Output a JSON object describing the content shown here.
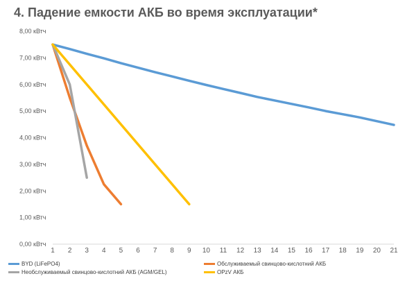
{
  "chart_data": {
    "type": "line",
    "title": "4. Падение емкости АКБ во время эксплуатации*",
    "x": [
      1,
      2,
      3,
      4,
      5,
      6,
      7,
      8,
      9,
      10,
      11,
      12,
      13,
      14,
      15,
      16,
      17,
      18,
      19,
      20,
      21
    ],
    "x_tick_labels": [
      "1",
      "2",
      "3",
      "4",
      "5",
      "6",
      "7",
      "8",
      "9",
      "10",
      "11",
      "12",
      "13",
      "14",
      "15",
      "16",
      "17",
      "18",
      "19",
      "20",
      "21"
    ],
    "y_tick_labels": [
      "0,00 кВтч",
      "1,00 кВтч",
      "2,00 кВтч",
      "3,00 кВтч",
      "4,00 кВтч",
      "5,00 кВтч",
      "6,00 кВтч",
      "7,00 кВтч",
      "8,00 кВтч"
    ],
    "ylim": [
      0,
      8
    ],
    "xlim": [
      1,
      21
    ],
    "grid": false,
    "legend_position": "bottom",
    "series": [
      {
        "name": "BYD (LiFePO4)",
        "color": "#5b9bd5",
        "points": [
          [
            1,
            7.5
          ],
          [
            2,
            7.33
          ],
          [
            3,
            7.15
          ],
          [
            4,
            6.98
          ],
          [
            5,
            6.8
          ],
          [
            6,
            6.63
          ],
          [
            7,
            6.46
          ],
          [
            8,
            6.3
          ],
          [
            9,
            6.14
          ],
          [
            10,
            5.98
          ],
          [
            11,
            5.83
          ],
          [
            12,
            5.68
          ],
          [
            13,
            5.53
          ],
          [
            14,
            5.4
          ],
          [
            15,
            5.27
          ],
          [
            16,
            5.14
          ],
          [
            17,
            5.0
          ],
          [
            18,
            4.88
          ],
          [
            19,
            4.76
          ],
          [
            20,
            4.62
          ],
          [
            21,
            4.48
          ]
        ]
      },
      {
        "name": "Обслуживаемый свинцово-кислотний АКБ",
        "color": "#ed7d31",
        "points": [
          [
            1,
            7.5
          ],
          [
            2,
            5.5
          ],
          [
            3,
            3.7
          ],
          [
            4,
            2.25
          ],
          [
            5,
            1.5
          ]
        ]
      },
      {
        "name": "Необслуживаемый свинцово-кислотний АКБ (AGM/GEL)",
        "color": "#a5a5a5",
        "points": [
          [
            1,
            7.5
          ],
          [
            2,
            6.0
          ],
          [
            3,
            2.5
          ]
        ]
      },
      {
        "name": "OPzV АКБ",
        "color": "#ffc000",
        "points": [
          [
            1,
            7.5
          ],
          [
            9,
            1.5
          ]
        ]
      }
    ]
  }
}
